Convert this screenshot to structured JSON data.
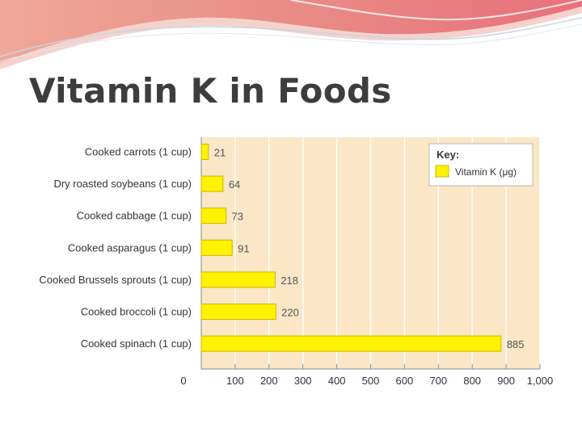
{
  "slide": {
    "title": "Vitamin K in Foods"
  },
  "chart_data": {
    "type": "bar",
    "orientation": "horizontal",
    "categories": [
      "Cooked carrots (1 cup)",
      "Dry roasted soybeans (1 cup)",
      "Cooked cabbage (1 cup)",
      "Cooked asparagus (1 cup)",
      "Cooked Brussels sprouts (1 cup)",
      "Cooked broccoli (1 cup)",
      "Cooked spinach (1 cup)"
    ],
    "values": [
      21,
      64,
      73,
      91,
      218,
      220,
      885
    ],
    "value_labels": [
      "21",
      "64",
      "73",
      "91",
      "218",
      "220",
      "885"
    ],
    "xlim": [
      0,
      1000
    ],
    "xticks": [
      "0",
      "100",
      "200",
      "300",
      "400",
      "500",
      "600",
      "700",
      "800",
      "900",
      "1,000"
    ],
    "grid": true,
    "legend": {
      "title": "Key:",
      "entries": [
        {
          "name": "Vitamin K (μg)",
          "color": "#fff200"
        }
      ],
      "placement": "top-right"
    },
    "colors": {
      "bar": "#fff200",
      "bar_edge": "#c9b800",
      "plot_background": "#fbe6c6",
      "grid": "#ffffff"
    }
  }
}
